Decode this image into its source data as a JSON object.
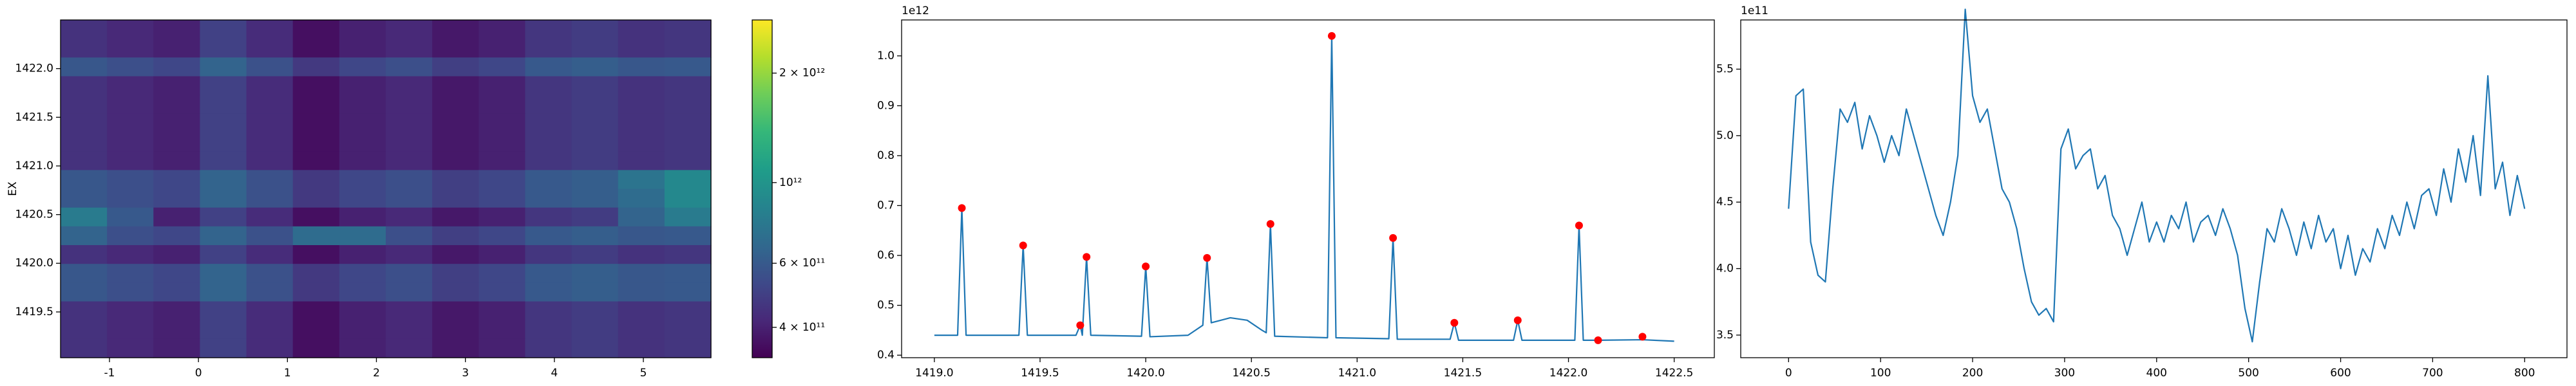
{
  "chart_data": [
    {
      "type": "heatmap",
      "ylabel": "EX",
      "xlim": [
        -1.55,
        5.76
      ],
      "ylim": [
        1419.03,
        1422.5
      ],
      "xticks": [
        -1,
        0,
        1,
        2,
        3,
        4,
        5
      ],
      "yticks": [
        1419.5,
        {
          "value": 1420,
          "label": "1420.0"
        },
        1420.5,
        {
          "value": 1421,
          "label": "1421.0"
        },
        1421.5,
        {
          "value": 1422,
          "label": "1422.0"
        }
      ],
      "colormap": "viridis",
      "colorbar": {
        "scale": "log",
        "lim": [
          330000000000.0,
          2800000000000.0
        ],
        "ticks": [
          {
            "value": 400000000000.0,
            "label": "4 × 10¹¹"
          },
          {
            "value": 600000000000.0,
            "label": "6 × 10¹¹"
          },
          {
            "value": 1000000000000.0,
            "label": "10¹²"
          },
          {
            "value": 2000000000000.0,
            "label": "2 × 10¹²"
          }
        ]
      },
      "z": [
        [
          450000000000.0,
          420000000000.0,
          400000000000.0,
          500000000000.0,
          430000000000.0,
          360000000000.0,
          400000000000.0,
          420000000000.0,
          380000000000.0,
          400000000000.0,
          460000000000.0,
          480000000000.0,
          450000000000.0,
          460000000000.0
        ],
        [
          450000000000.0,
          420000000000.0,
          400000000000.0,
          500000000000.0,
          430000000000.0,
          360000000000.0,
          400000000000.0,
          420000000000.0,
          380000000000.0,
          400000000000.0,
          460000000000.0,
          480000000000.0,
          450000000000.0,
          460000000000.0
        ],
        [
          590000000000.0,
          550000000000.0,
          520000000000.0,
          650000000000.0,
          560000000000.0,
          470000000000.0,
          520000000000.0,
          550000000000.0,
          490000000000.0,
          520000000000.0,
          600000000000.0,
          620000000000.0,
          590000000000.0,
          600000000000.0
        ],
        [
          450000000000.0,
          420000000000.0,
          400000000000.0,
          500000000000.0,
          430000000000.0,
          360000000000.0,
          400000000000.0,
          420000000000.0,
          380000000000.0,
          400000000000.0,
          460000000000.0,
          480000000000.0,
          450000000000.0,
          460000000000.0
        ],
        [
          450000000000.0,
          420000000000.0,
          400000000000.0,
          500000000000.0,
          430000000000.0,
          360000000000.0,
          400000000000.0,
          420000000000.0,
          380000000000.0,
          400000000000.0,
          460000000000.0,
          480000000000.0,
          450000000000.0,
          460000000000.0
        ],
        [
          450000000000.0,
          420000000000.0,
          400000000000.0,
          500000000000.0,
          430000000000.0,
          360000000000.0,
          400000000000.0,
          420000000000.0,
          380000000000.0,
          400000000000.0,
          460000000000.0,
          480000000000.0,
          450000000000.0,
          460000000000.0
        ],
        [
          450000000000.0,
          420000000000.0,
          400000000000.0,
          500000000000.0,
          430000000000.0,
          360000000000.0,
          400000000000.0,
          420000000000.0,
          380000000000.0,
          400000000000.0,
          460000000000.0,
          480000000000.0,
          450000000000.0,
          460000000000.0
        ],
        [
          450000000000.0,
          420000000000.0,
          400000000000.0,
          500000000000.0,
          430000000000.0,
          360000000000.0,
          400000000000.0,
          420000000000.0,
          380000000000.0,
          400000000000.0,
          460000000000.0,
          480000000000.0,
          450000000000.0,
          460000000000.0
        ],
        [
          590000000000.0,
          550000000000.0,
          520000000000.0,
          650000000000.0,
          560000000000.0,
          470000000000.0,
          520000000000.0,
          550000000000.0,
          490000000000.0,
          520000000000.0,
          600000000000.0,
          620000000000.0,
          750000000000.0,
          900000000000.0
        ],
        [
          590000000000.0,
          550000000000.0,
          520000000000.0,
          650000000000.0,
          560000000000.0,
          470000000000.0,
          520000000000.0,
          550000000000.0,
          490000000000.0,
          520000000000.0,
          600000000000.0,
          620000000000.0,
          700000000000.0,
          900000000000.0
        ],
        [
          800000000000.0,
          600000000000.0,
          400000000000.0,
          500000000000.0,
          430000000000.0,
          360000000000.0,
          400000000000.0,
          420000000000.0,
          380000000000.0,
          400000000000.0,
          460000000000.0,
          480000000000.0,
          650000000000.0,
          800000000000.0
        ],
        [
          650000000000.0,
          550000000000.0,
          520000000000.0,
          650000000000.0,
          560000000000.0,
          700000000000.0,
          700000000000.0,
          550000000000.0,
          490000000000.0,
          520000000000.0,
          600000000000.0,
          620000000000.0,
          590000000000.0,
          600000000000.0
        ],
        [
          450000000000.0,
          420000000000.0,
          400000000000.0,
          500000000000.0,
          430000000000.0,
          360000000000.0,
          400000000000.0,
          420000000000.0,
          380000000000.0,
          400000000000.0,
          460000000000.0,
          480000000000.0,
          450000000000.0,
          460000000000.0
        ],
        [
          590000000000.0,
          550000000000.0,
          520000000000.0,
          650000000000.0,
          560000000000.0,
          470000000000.0,
          520000000000.0,
          550000000000.0,
          490000000000.0,
          520000000000.0,
          600000000000.0,
          620000000000.0,
          590000000000.0,
          600000000000.0
        ],
        [
          590000000000.0,
          550000000000.0,
          520000000000.0,
          650000000000.0,
          560000000000.0,
          470000000000.0,
          520000000000.0,
          550000000000.0,
          490000000000.0,
          520000000000.0,
          600000000000.0,
          620000000000.0,
          590000000000.0,
          600000000000.0
        ],
        [
          450000000000.0,
          420000000000.0,
          400000000000.0,
          500000000000.0,
          430000000000.0,
          360000000000.0,
          400000000000.0,
          420000000000.0,
          380000000000.0,
          400000000000.0,
          460000000000.0,
          480000000000.0,
          450000000000.0,
          460000000000.0
        ],
        [
          450000000000.0,
          420000000000.0,
          400000000000.0,
          500000000000.0,
          430000000000.0,
          360000000000.0,
          400000000000.0,
          420000000000.0,
          380000000000.0,
          400000000000.0,
          460000000000.0,
          480000000000.0,
          450000000000.0,
          460000000000.0
        ],
        [
          450000000000.0,
          420000000000.0,
          400000000000.0,
          500000000000.0,
          430000000000.0,
          360000000000.0,
          400000000000.0,
          420000000000.0,
          380000000000.0,
          400000000000.0,
          460000000000.0,
          480000000000.0,
          450000000000.0,
          460000000000.0
        ]
      ]
    },
    {
      "type": "line",
      "offset_label": "1e12",
      "xlim": [
        1418.845,
        1422.69
      ],
      "ylim": [
        0.395,
        1.072
      ],
      "xticks": [
        {
          "value": 1419,
          "label": "1419.0"
        },
        1419.5,
        {
          "value": 1420,
          "label": "1420.0"
        },
        1420.5,
        {
          "value": 1421,
          "label": "1421.0"
        },
        1421.5,
        {
          "value": 1422,
          "label": "1422.0"
        },
        1422.5
      ],
      "yticks": [
        0.4,
        0.5,
        0.6,
        0.7,
        0.8,
        0.9,
        {
          "value": 1,
          "label": "1.0"
        }
      ],
      "series": [
        {
          "style": "line",
          "color": "#1f77b4",
          "x": [
            1419.0,
            1419.11,
            1419.13,
            1419.15,
            1419.4,
            1419.42,
            1419.44,
            1419.67,
            1419.69,
            1419.7,
            1419.72,
            1419.74,
            1419.98,
            1420.0,
            1420.02,
            1420.2,
            1420.27,
            1420.29,
            1420.31,
            1420.4,
            1420.48,
            1420.55,
            1420.57,
            1420.59,
            1420.61,
            1420.86,
            1420.88,
            1420.9,
            1421.15,
            1421.17,
            1421.19,
            1421.44,
            1421.46,
            1421.48,
            1421.74,
            1421.76,
            1421.78,
            1422.03,
            1422.05,
            1422.07,
            1422.14,
            1422.35,
            1422.5
          ],
          "values": [
            0.44,
            0.44,
            0.695,
            0.44,
            0.44,
            0.62,
            0.44,
            0.44,
            0.46,
            0.44,
            0.597,
            0.44,
            0.438,
            0.578,
            0.437,
            0.44,
            0.46,
            0.595,
            0.465,
            0.475,
            0.47,
            0.45,
            0.445,
            0.663,
            0.438,
            0.435,
            1.04,
            0.435,
            0.433,
            0.635,
            0.432,
            0.432,
            0.465,
            0.43,
            0.43,
            0.47,
            0.43,
            0.43,
            0.66,
            0.43,
            0.43,
            0.431,
            0.428
          ]
        },
        {
          "style": "markers",
          "color": "#ff0000",
          "x": [
            1419.13,
            1419.42,
            1419.69,
            1419.72,
            1420.0,
            1420.29,
            1420.59,
            1420.88,
            1421.17,
            1421.46,
            1421.76,
            1422.05,
            1422.14,
            1422.35
          ],
          "values": [
            0.695,
            0.62,
            0.46,
            0.597,
            0.578,
            0.595,
            0.663,
            1.04,
            0.635,
            0.465,
            0.47,
            0.66,
            0.43,
            0.437
          ]
        }
      ]
    },
    {
      "type": "line",
      "offset_label": "1e11",
      "xlim": [
        -52,
        846
      ],
      "ylim": [
        3.33,
        5.87
      ],
      "xticks": [
        0,
        100,
        200,
        300,
        400,
        500,
        600,
        700,
        800
      ],
      "yticks": [
        3.5,
        {
          "value": 4,
          "label": "4.0"
        },
        4.5,
        {
          "value": 5,
          "label": "5.0"
        },
        5.5
      ],
      "series": [
        {
          "style": "line",
          "color": "#1f77b4",
          "x": [
            0,
            8,
            16,
            24,
            32,
            40,
            48,
            56,
            64,
            72,
            80,
            88,
            96,
            104,
            112,
            120,
            128,
            136,
            144,
            152,
            160,
            168,
            176,
            184,
            192,
            200,
            208,
            216,
            224,
            232,
            240,
            248,
            256,
            264,
            272,
            280,
            288,
            296,
            304,
            312,
            320,
            328,
            336,
            344,
            352,
            360,
            368,
            376,
            384,
            392,
            400,
            408,
            416,
            424,
            432,
            440,
            448,
            456,
            464,
            472,
            480,
            488,
            496,
            504,
            512,
            520,
            528,
            536,
            544,
            552,
            560,
            568,
            576,
            584,
            592,
            600,
            608,
            616,
            624,
            632,
            640,
            648,
            656,
            664,
            672,
            680,
            688,
            696,
            704,
            712,
            720,
            728,
            736,
            744,
            752,
            760,
            768,
            776,
            784,
            792,
            800
          ],
          "values": [
            4.45,
            5.3,
            5.35,
            4.2,
            3.95,
            3.9,
            4.6,
            5.2,
            5.1,
            5.25,
            4.9,
            5.15,
            5.0,
            4.8,
            5.0,
            4.85,
            5.2,
            5.0,
            4.8,
            4.6,
            4.4,
            4.25,
            4.5,
            4.85,
            5.95,
            5.3,
            5.1,
            5.2,
            4.9,
            4.6,
            4.5,
            4.3,
            4.0,
            3.75,
            3.65,
            3.7,
            3.6,
            4.9,
            5.05,
            4.75,
            4.85,
            4.9,
            4.6,
            4.7,
            4.4,
            4.3,
            4.1,
            4.3,
            4.5,
            4.2,
            4.35,
            4.2,
            4.4,
            4.3,
            4.5,
            4.2,
            4.35,
            4.4,
            4.25,
            4.45,
            4.3,
            4.1,
            3.7,
            3.45,
            3.9,
            4.3,
            4.2,
            4.45,
            4.3,
            4.1,
            4.35,
            4.15,
            4.4,
            4.2,
            4.3,
            4.0,
            4.25,
            3.95,
            4.15,
            4.05,
            4.3,
            4.15,
            4.4,
            4.25,
            4.5,
            4.3,
            4.55,
            4.6,
            4.4,
            4.75,
            4.5,
            4.9,
            4.65,
            5.0,
            4.55,
            5.45,
            4.6,
            4.8,
            4.4,
            4.7,
            4.45
          ]
        }
      ]
    }
  ]
}
